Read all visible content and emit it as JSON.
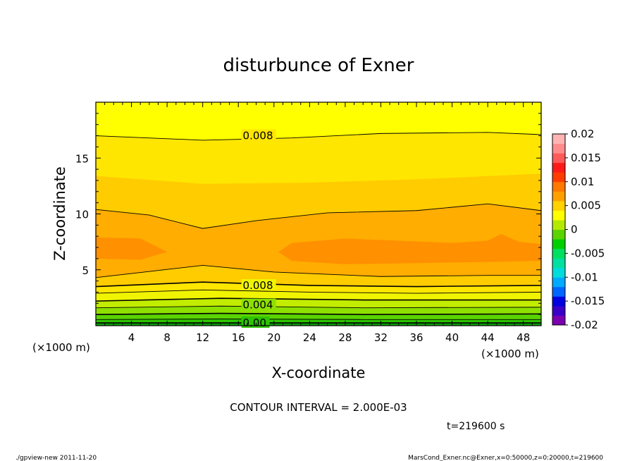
{
  "chart_data": {
    "type": "heatmap",
    "title": "disturbunce of Exner",
    "xlabel": "X-coordinate",
    "ylabel": "Z-coordinate",
    "x_unit_left": "(×1000 m)",
    "x_unit_right": "(×1000 m)",
    "xlim": [
      0,
      50
    ],
    "ylim": [
      0,
      20
    ],
    "x_ticks": [
      "4",
      "8",
      "12",
      "16",
      "20",
      "24",
      "28",
      "32",
      "36",
      "40",
      "44",
      "48"
    ],
    "y_ticks": [
      "5",
      "10",
      "15"
    ],
    "colorbar": {
      "range": [
        -0.02,
        0.02
      ],
      "tick_labels": [
        "0.02",
        "0.015",
        "0.01",
        "0.005",
        "0",
        "-0.005",
        "-0.01",
        "-0.015",
        "-0.02"
      ]
    },
    "contour_labels": [
      "0.008",
      "0.008",
      "0.004",
      "0.00"
    ],
    "contour_interval_text": "CONTOUR INTERVAL = 2.000E-03",
    "time_text": "t=219600 s"
  },
  "footer": {
    "left": "./gpview-new   2011-11-20",
    "right": "MarsCond_Exner.nc@Exner,x=0:50000,z=0:20000,t=219600"
  },
  "colors": {
    "bands": [
      "#00a000",
      "#2ec300",
      "#5ad400",
      "#8ee000",
      "#c2ec00",
      "#f0f400",
      "#ffff00",
      "#ffe600",
      "#ffcc00",
      "#ffad00",
      "#ff9000",
      "#ff7200"
    ],
    "colorbar": [
      "#7a00b0",
      "#3a00c8",
      "#0000e0",
      "#0066ff",
      "#00aaff",
      "#00dcdc",
      "#00e0a0",
      "#00e060",
      "#00d000",
      "#5ad400",
      "#b4ea00",
      "#ffff00",
      "#ffd200",
      "#ffa000",
      "#ff7800",
      "#ff3c00",
      "#ff1a1a",
      "#ff5a5a",
      "#ff8c8c",
      "#ffb4b4"
    ]
  }
}
